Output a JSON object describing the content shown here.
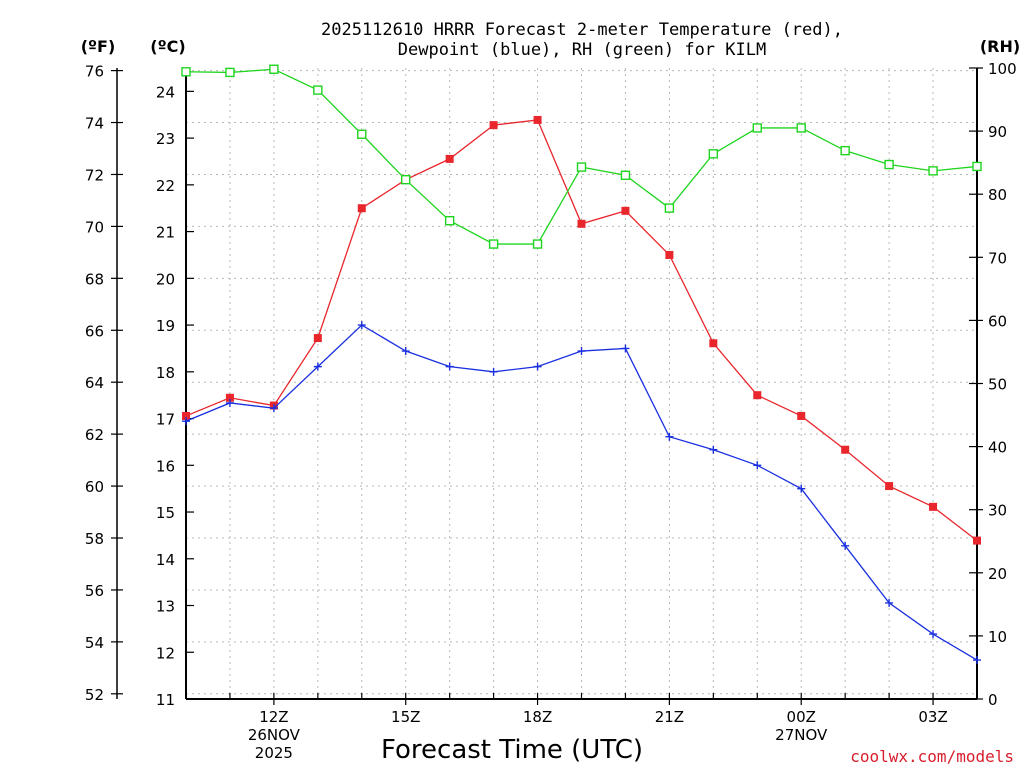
{
  "chart_data": {
    "type": "line",
    "title_line1": "2025112610 HRRR Forecast 2-meter Temperature (red),",
    "title_line2": "Dewpoint (blue), RH (green) for KILM",
    "xlabel": "Forecast Time (UTC)",
    "credit": "coolwx.com/models",
    "x_hours": [
      10,
      11,
      12,
      13,
      14,
      15,
      16,
      17,
      18,
      19,
      20,
      21,
      22,
      23,
      24,
      25,
      26,
      27,
      28
    ],
    "xlim": [
      10,
      28
    ],
    "x_ticks": [
      {
        "hour": 12,
        "lines": [
          "12Z",
          "26NOV",
          "2025"
        ]
      },
      {
        "hour": 15,
        "lines": [
          "15Z"
        ]
      },
      {
        "hour": 18,
        "lines": [
          "18Z"
        ]
      },
      {
        "hour": 21,
        "lines": [
          "21Z"
        ]
      },
      {
        "hour": 24,
        "lines": [
          "00Z",
          "27NOV"
        ]
      },
      {
        "hour": 27,
        "lines": [
          "03Z"
        ]
      }
    ],
    "axes": {
      "fahrenheit": {
        "label": "(ºF)",
        "ticks": [
          52,
          54,
          56,
          58,
          60,
          62,
          64,
          66,
          68,
          70,
          72,
          74,
          76
        ],
        "range": [
          51.8,
          76.1
        ]
      },
      "celsius": {
        "label": "(ºC)",
        "ticks": [
          11,
          12,
          13,
          14,
          15,
          16,
          17,
          18,
          19,
          20,
          21,
          22,
          23,
          24
        ],
        "range": [
          11.0,
          24.5
        ]
      },
      "rh": {
        "label": "(RH)",
        "ticks": [
          0,
          10,
          20,
          30,
          40,
          50,
          60,
          70,
          80,
          90,
          100
        ],
        "range": [
          0,
          100
        ]
      }
    },
    "series": [
      {
        "name": "2-meter Temperature",
        "axis": "fahrenheit",
        "color": "#e8262c",
        "marker": "filled-square",
        "values": [
          62.7,
          63.4,
          63.1,
          65.7,
          70.7,
          71.8,
          72.6,
          73.9,
          74.1,
          70.1,
          70.6,
          68.9,
          65.5,
          63.5,
          62.7,
          61.4,
          60.0,
          59.2,
          57.9
        ]
      },
      {
        "name": "Dewpoint",
        "axis": "fahrenheit",
        "color": "#1a30e0",
        "marker": "plus",
        "values": [
          62.5,
          63.2,
          63.0,
          64.6,
          66.2,
          65.2,
          64.6,
          64.4,
          64.6,
          65.2,
          65.3,
          61.9,
          61.4,
          60.8,
          59.9,
          57.7,
          55.5,
          54.3,
          53.3
        ]
      },
      {
        "name": "RH",
        "axis": "rh",
        "color": "#1ed51e",
        "marker": "open-square",
        "values": [
          99.4,
          99.3,
          99.8,
          96.5,
          89.5,
          82.3,
          75.8,
          72.1,
          72.1,
          84.3,
          83.0,
          77.8,
          86.4,
          90.5,
          90.5,
          86.9,
          84.7,
          83.7,
          84.4
        ]
      }
    ]
  }
}
